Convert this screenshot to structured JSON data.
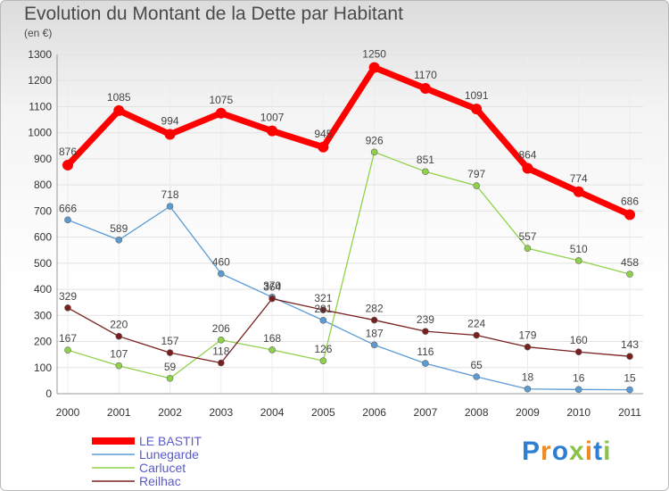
{
  "chart_data": {
    "type": "line",
    "title": "Evolution du Montant de la Dette par Habitant",
    "unit_label": "(en €)",
    "xlabel": "",
    "ylabel": "",
    "x": [
      "2000",
      "2001",
      "2002",
      "2003",
      "2004",
      "2005",
      "2006",
      "2007",
      "2008",
      "2009",
      "2010",
      "2011"
    ],
    "ylim": [
      0,
      1300
    ],
    "yticks": [
      0,
      100,
      200,
      300,
      400,
      500,
      600,
      700,
      800,
      900,
      1000,
      1100,
      1200,
      1300
    ],
    "grid": true,
    "legend_position": "bottom-left",
    "series": [
      {
        "name": "LE BASTIT",
        "color": "#ff0000",
        "values": [
          876,
          1085,
          994,
          1075,
          1007,
          945,
          1250,
          1170,
          1091,
          864,
          774,
          686
        ]
      },
      {
        "name": "Lunegarde",
        "color": "#5b9bd5",
        "values": [
          666,
          589,
          718,
          460,
          370,
          281,
          187,
          116,
          65,
          18,
          16,
          15
        ]
      },
      {
        "name": "Carlucet",
        "color": "#8fd24a",
        "values": [
          167,
          107,
          59,
          206,
          168,
          126,
          926,
          851,
          797,
          557,
          510,
          458
        ]
      },
      {
        "name": "Reilhac",
        "color": "#7a1f1f",
        "values": [
          329,
          220,
          157,
          118,
          364,
          321,
          282,
          239,
          224,
          179,
          160,
          143
        ]
      }
    ]
  },
  "logo": {
    "text": "Proxiti",
    "colors": [
      "#2f7fd0",
      "#f08a24",
      "#2f7fd0",
      "#8bc34a",
      "#f08a24",
      "#2f7fd0",
      "#8bc34a"
    ]
  }
}
